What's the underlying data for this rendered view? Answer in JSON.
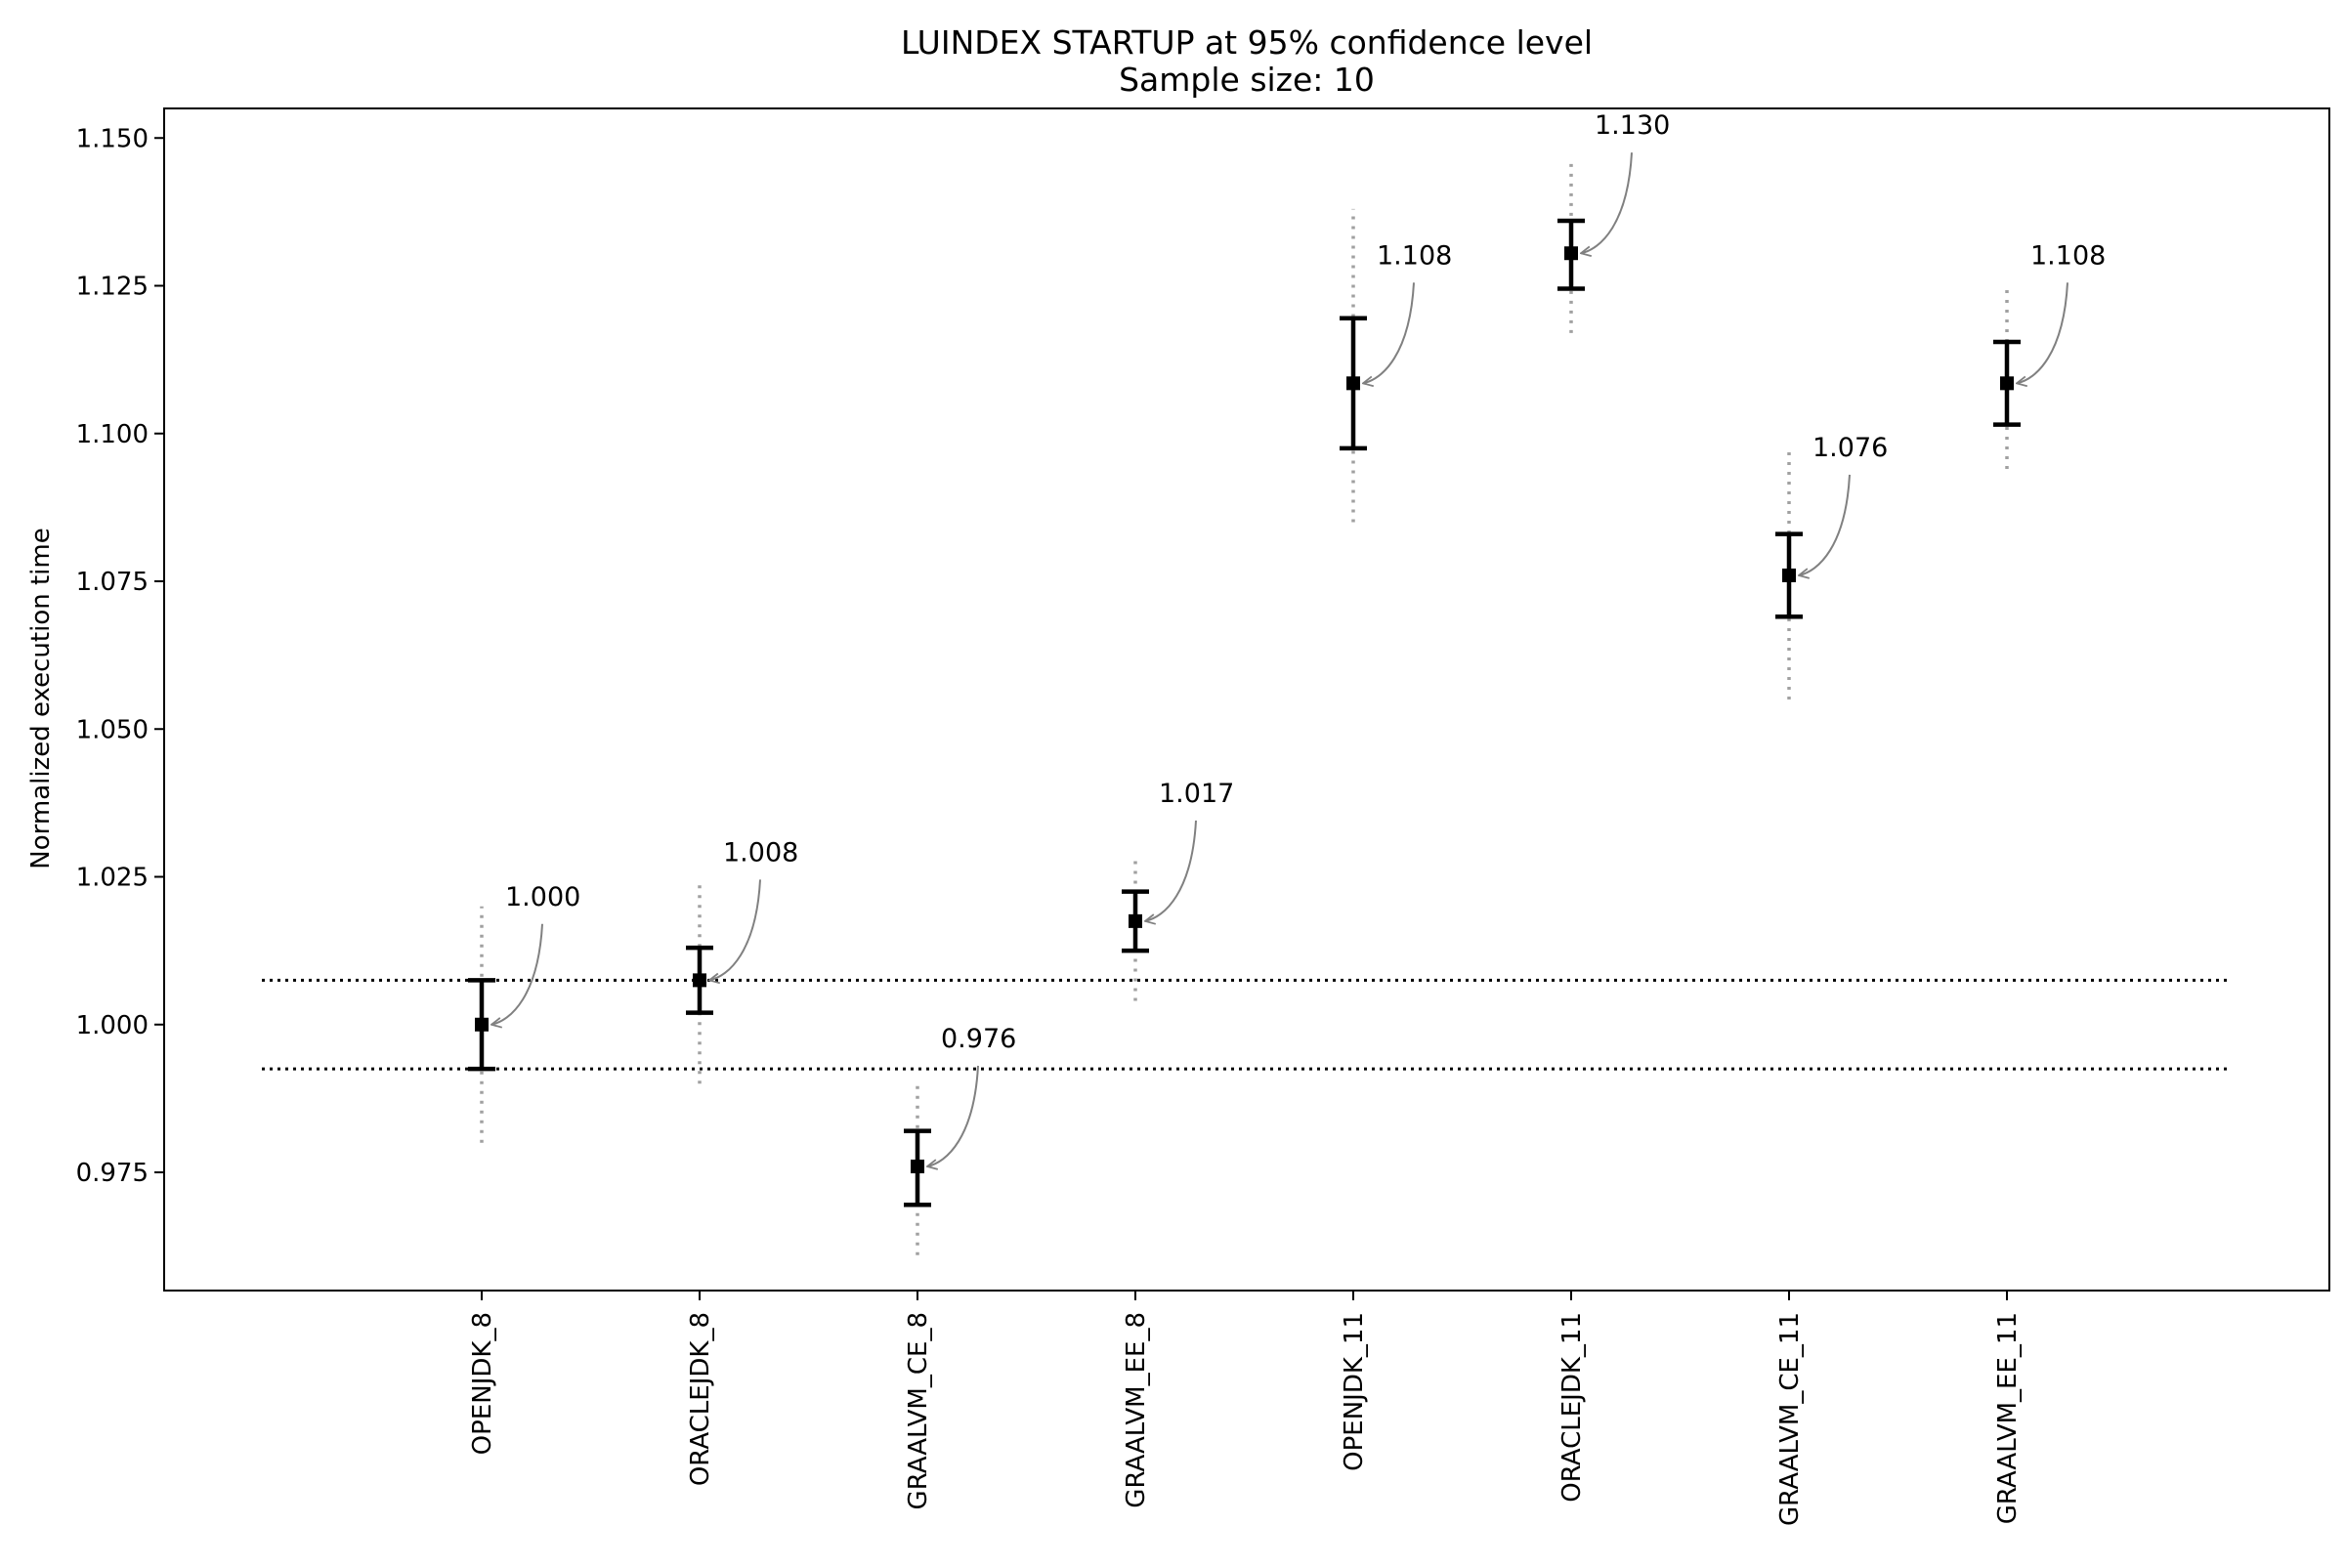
{
  "chart_data": {
    "type": "scatter",
    "title": "LUINDEX STARTUP at 95% confidence level",
    "subtitle": "Sample size: 10",
    "xlabel": "",
    "ylabel": "Normalized execution time",
    "categories": [
      "OPENJDK_8",
      "ORACLEJDK_8",
      "GRAALVM_CE_8",
      "GRAALVM_EE_8",
      "OPENJDK_11",
      "ORACLEJDK_11",
      "GRAALVM_CE_11",
      "GRAALVM_EE_11"
    ],
    "series": [
      {
        "means": [
          1.0,
          1.0075,
          0.976,
          1.0175,
          1.1085,
          1.1305,
          1.076,
          1.1085
        ],
        "ci_low": [
          0.9925,
          1.002,
          0.9695,
          1.0125,
          1.0975,
          1.1245,
          1.069,
          1.1015
        ],
        "ci_high": [
          1.0075,
          1.013,
          0.982,
          1.0225,
          1.1195,
          1.136,
          1.083,
          1.1155
        ],
        "range_low": [
          0.98,
          0.99,
          0.961,
          1.004,
          1.085,
          1.117,
          1.055,
          1.094
        ],
        "range_high": [
          1.02,
          1.024,
          0.99,
          1.028,
          1.138,
          1.146,
          1.097,
          1.125
        ],
        "labels": [
          "1.000",
          "1.008",
          "0.976",
          "1.017",
          "1.108",
          "1.130",
          "1.076",
          "1.108"
        ]
      }
    ],
    "reference_lines": [
      1.0075,
      0.9925
    ],
    "yticks": [
      "0.975",
      "1.000",
      "1.025",
      "1.050",
      "1.075",
      "1.100",
      "1.125",
      "1.150"
    ],
    "ylim": [
      0.955,
      1.155
    ],
    "grid": false,
    "colors": {
      "marker": "#000000",
      "range": "#a0a0a0",
      "arrow": "#808080",
      "reference": "#000000"
    }
  }
}
